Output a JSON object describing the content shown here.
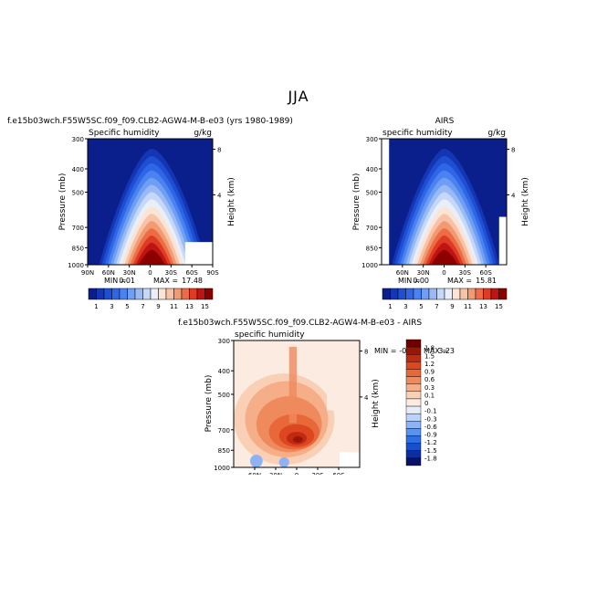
{
  "title": "JJA",
  "colors": {
    "main_scale": [
      "#0a1e8c",
      "#1435b4",
      "#1e4ed2",
      "#2f66e6",
      "#4a82f0",
      "#6f9ff4",
      "#9abaf6",
      "#c5d8f8",
      "#e9eff8",
      "#fbe3d6",
      "#f7c2a6",
      "#f29a72",
      "#ec6d45",
      "#de3c22",
      "#c01414",
      "#8c0000"
    ],
    "diff_scale": [
      "#08126b",
      "#0c2ea0",
      "#1850cc",
      "#2f6fe4",
      "#5a93ee",
      "#8db3f4",
      "#bcd2f8",
      "#e4edf8",
      "#fbebe0",
      "#f9d0b6",
      "#f5ae88",
      "#ef8a5c",
      "#e8683a",
      "#dc4720",
      "#c02a10",
      "#9a1606",
      "#700000"
    ]
  },
  "chart_data": [
    {
      "type": "heatmap",
      "panel": "model",
      "header": "f.e15b03wch.F55W5SC.f09_f09.CLB2-AGW4-M-B-e03 (yrs 1980-1989)",
      "left_label": "Specific humidity",
      "units": "g/kg",
      "ylabel": "Pressure (mb)",
      "y2label": "Height (km)",
      "y_ticks": [
        "300",
        "400",
        "500",
        "700",
        "850",
        "1000"
      ],
      "y2_ticks": [
        "8",
        "4"
      ],
      "x_ticks": [
        "90N",
        "60N",
        "30N",
        "0",
        "30S",
        "60S",
        "90S"
      ],
      "xlim": [
        90,
        -90
      ],
      "ylim_mb": [
        1000,
        300
      ],
      "min_text": "MIN =",
      "min_value": "0.01",
      "max_text": "MAX =",
      "max_value": "17.48",
      "colorbar_labels": [
        "1",
        "3",
        "5",
        "7",
        "9",
        "11",
        "13",
        "15"
      ],
      "peak": {
        "lat": -2,
        "mb": 980,
        "value": 17.48
      }
    },
    {
      "type": "heatmap",
      "panel": "obs",
      "header": "AIRS",
      "left_label": "specific humidity",
      "units": "g/kg",
      "ylabel": "Pressure (mb)",
      "y2label": "Height (km)",
      "y_ticks": [
        "300",
        "400",
        "500",
        "700",
        "850",
        "1000"
      ],
      "y2_ticks": [
        "8",
        "4"
      ],
      "x_ticks": [
        "60N",
        "30N",
        "0",
        "30S",
        "60S"
      ],
      "xlim": [
        90,
        -90
      ],
      "ylim_mb": [
        1000,
        300
      ],
      "min_text": "MIN =",
      "min_value": "0.00",
      "max_text": "MAX =",
      "max_value": "15.81",
      "colorbar_labels": [
        "1",
        "3",
        "5",
        "7",
        "9",
        "11",
        "13",
        "15"
      ],
      "peak": {
        "lat": 0,
        "mb": 985,
        "value": 15.81
      }
    },
    {
      "type": "heatmap",
      "panel": "difference",
      "header": "f.e15b03wch.F55W5SC.f09_f09.CLB2-AGW4-M-B-e03 - AIRS",
      "left_label": "specific humidity",
      "ylabel": "Pressure (mb)",
      "y2label": "Height (km)",
      "y_ticks": [
        "300",
        "400",
        "500",
        "700",
        "850",
        "1000"
      ],
      "y2_ticks": [
        "8",
        "4"
      ],
      "x_ticks": [
        "60N",
        "30N",
        "0",
        "30S",
        "60S"
      ],
      "xlim": [
        90,
        -90
      ],
      "ylim_mb": [
        1000,
        300
      ],
      "min_text": "MIN =",
      "min_value": "-0.47",
      "max_text": "MAX =",
      "max_value": "3.23",
      "colorbar_labels": [
        "1.8",
        "1.5",
        "1.2",
        "0.9",
        "0.6",
        "0.3",
        "0.1",
        "0",
        "-0.1",
        "-0.3",
        "-0.6",
        "-0.9",
        "-1.2",
        "-1.5",
        "-1.8"
      ]
    }
  ]
}
